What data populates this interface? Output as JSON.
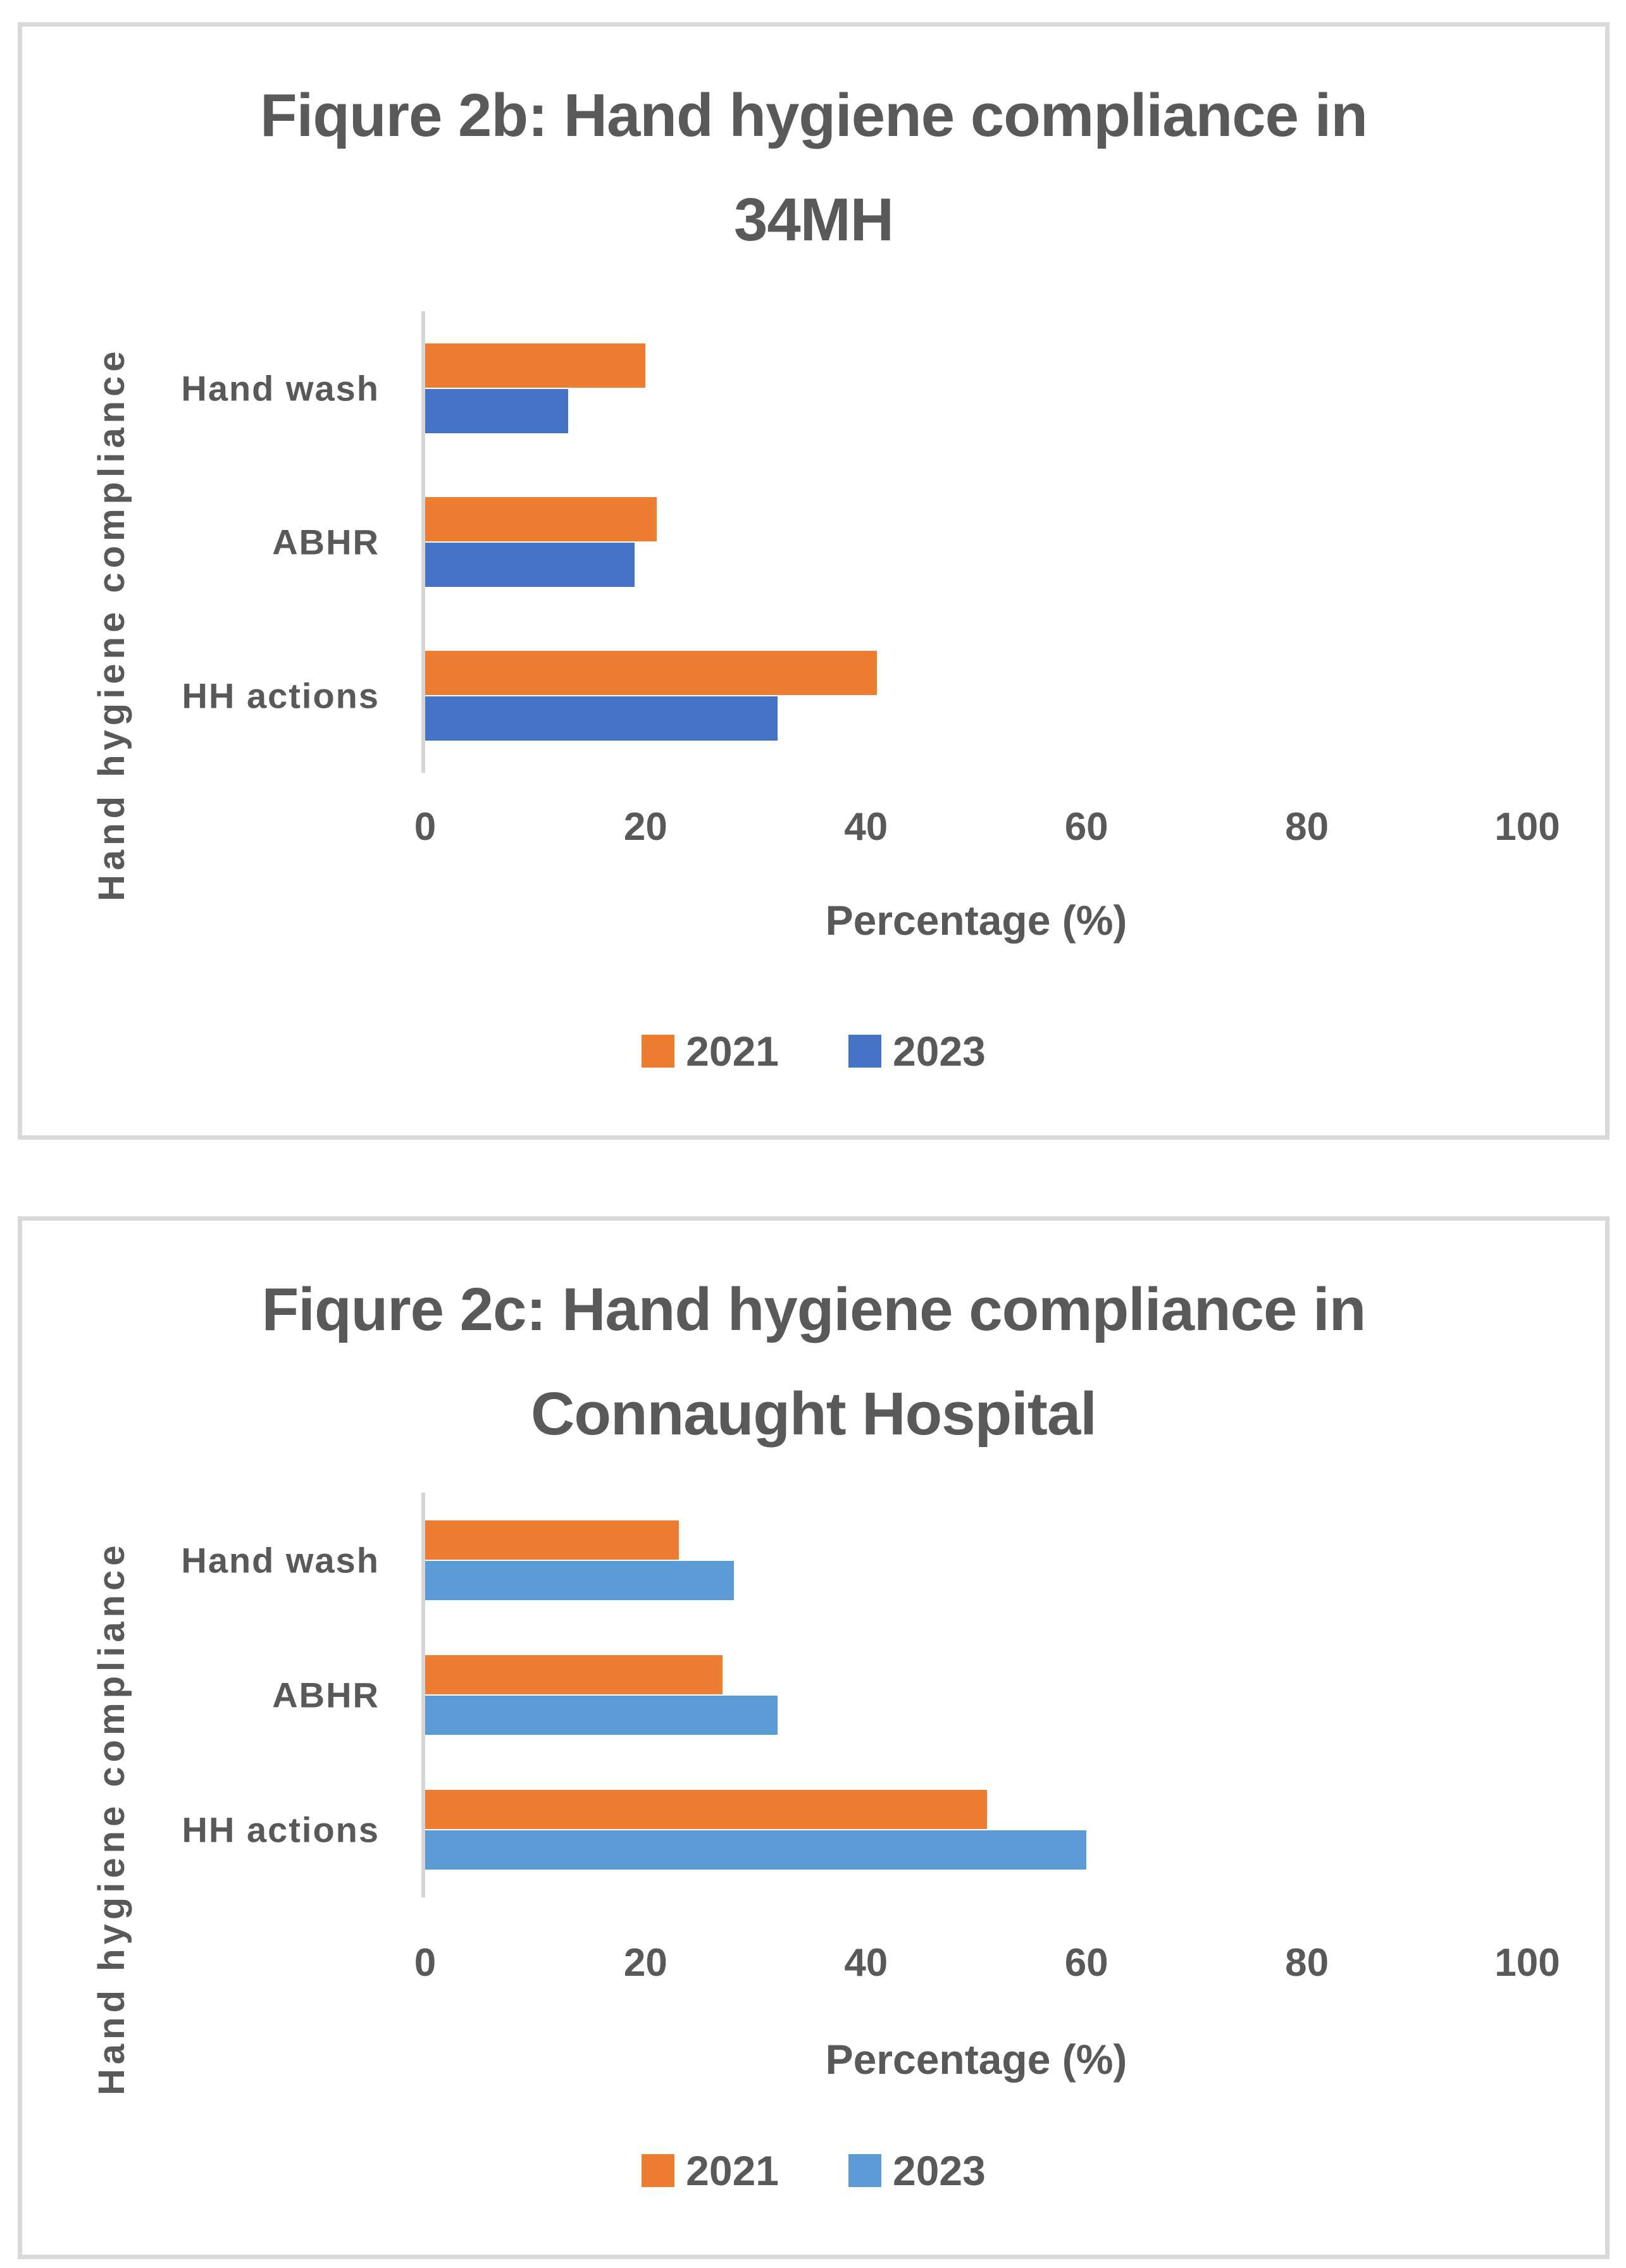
{
  "page": {
    "background": "#ffffff",
    "panel_border_color": "#d9d9d9",
    "text_color": "#595959",
    "axis_line_color": "#d6d6d6"
  },
  "chart_data": [
    {
      "type": "bar",
      "orientation": "horizontal",
      "title": "Fiqure 2b: Hand hygiene compliance in 34MH",
      "title_lines": [
        "Fiqure 2b: Hand hygiene compliance in",
        "34MH"
      ],
      "categories": [
        "Hand wash",
        "ABHR",
        "HH actions"
      ],
      "series": [
        {
          "name": "2021",
          "color": "#ED7D31",
          "values": [
            20,
            21,
            41
          ]
        },
        {
          "name": "2023",
          "color": "#4472C4",
          "values": [
            13,
            19,
            32
          ]
        }
      ],
      "xlabel": "Percentage (%)",
      "ylabel": "Hand hygiene compliance",
      "xlim": [
        0,
        100
      ],
      "xticks": [
        0,
        20,
        40,
        60,
        80,
        100
      ],
      "grid": false,
      "legend_position": "bottom"
    },
    {
      "type": "bar",
      "orientation": "horizontal",
      "title": "Fiqure 2c: Hand hygiene compliance in Connaught Hospital",
      "title_lines": [
        "Fiqure 2c: Hand hygiene compliance in",
        "Connaught Hospital"
      ],
      "categories": [
        "Hand wash",
        "ABHR",
        "HH actions"
      ],
      "series": [
        {
          "name": "2021",
          "color": "#ED7D31",
          "values": [
            23,
            27,
            51
          ]
        },
        {
          "name": "2023",
          "color": "#5B9BD5",
          "values": [
            28,
            32,
            60
          ]
        }
      ],
      "xlabel": "Percentage (%)",
      "ylabel": "Hand hygiene compliance",
      "xlim": [
        0,
        100
      ],
      "xticks": [
        0,
        20,
        40,
        60,
        80,
        100
      ],
      "grid": false,
      "legend_position": "bottom"
    }
  ]
}
